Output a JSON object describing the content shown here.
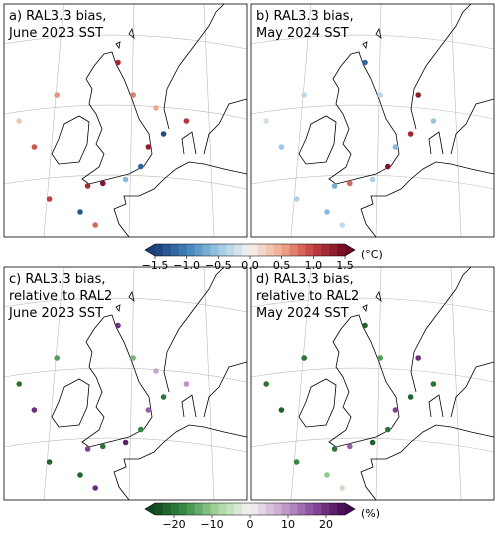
{
  "panels": [
    {
      "title": [
        "a) RAL3.3 bias,",
        "June 2023 SST"
      ],
      "colorbar": 0,
      "points": [
        {
          "lon": -9,
          "lat": 57,
          "value": 0.6
        },
        {
          "lon": -12,
          "lat": 53,
          "value": 0.9
        },
        {
          "lon": -10,
          "lat": 49,
          "value": 1.0
        },
        {
          "lon": -5,
          "lat": 50,
          "value": 1.2
        },
        {
          "lon": -3,
          "lat": 50.2,
          "value": 1.4
        },
        {
          "lon": 0,
          "lat": 50.5,
          "value": -0.6
        },
        {
          "lon": 2,
          "lat": 51.5,
          "value": -1.2
        },
        {
          "lon": 3,
          "lat": 53,
          "value": 1.3
        },
        {
          "lon": 5,
          "lat": 54,
          "value": -1.4
        },
        {
          "lon": 8,
          "lat": 55,
          "value": 1.1
        },
        {
          "lon": 1,
          "lat": 57,
          "value": 0.7
        },
        {
          "lon": -1,
          "lat": 59.5,
          "value": 1.2
        },
        {
          "lon": -6,
          "lat": 48,
          "value": -1.3
        },
        {
          "lon": -4,
          "lat": 47,
          "value": 0.8
        },
        {
          "lon": -14,
          "lat": 55,
          "value": 0.3
        },
        {
          "lon": 4,
          "lat": 56,
          "value": 0.5
        }
      ]
    },
    {
      "title": [
        "b) RAL3.3 bias,",
        "May 2024 SST"
      ],
      "colorbar": 0,
      "points": [
        {
          "lon": -9,
          "lat": 57,
          "value": -0.3
        },
        {
          "lon": -12,
          "lat": 53,
          "value": -0.5
        },
        {
          "lon": -10,
          "lat": 49,
          "value": -0.4
        },
        {
          "lon": -5,
          "lat": 50,
          "value": -0.7
        },
        {
          "lon": -3,
          "lat": 50.2,
          "value": 0.8
        },
        {
          "lon": 0,
          "lat": 50.5,
          "value": -0.4
        },
        {
          "lon": 2,
          "lat": 51.5,
          "value": 1.4
        },
        {
          "lon": 3,
          "lat": 53,
          "value": -0.6
        },
        {
          "lon": 5,
          "lat": 54,
          "value": 1.2
        },
        {
          "lon": 8,
          "lat": 55,
          "value": -0.5
        },
        {
          "lon": 1,
          "lat": 57,
          "value": -0.3
        },
        {
          "lon": -1,
          "lat": 59.5,
          "value": -1.2
        },
        {
          "lon": -6,
          "lat": 48,
          "value": -0.6
        },
        {
          "lon": -4,
          "lat": 47,
          "value": -0.3
        },
        {
          "lon": -14,
          "lat": 55,
          "value": -0.2
        },
        {
          "lon": 6,
          "lat": 57,
          "value": 1.3
        }
      ]
    },
    {
      "title": [
        "c) RAL3.3 bias,",
        "relative to RAL2",
        "June 2023 SST"
      ],
      "colorbar": 1,
      "points": [
        {
          "lon": -9,
          "lat": 57,
          "value": -15
        },
        {
          "lon": -12,
          "lat": 53,
          "value": 20
        },
        {
          "lon": -10,
          "lat": 49,
          "value": -22
        },
        {
          "lon": -5,
          "lat": 50,
          "value": 18
        },
        {
          "lon": -3,
          "lat": 50.2,
          "value": -20
        },
        {
          "lon": 0,
          "lat": 50.5,
          "value": 22
        },
        {
          "lon": 2,
          "lat": 51.5,
          "value": -18
        },
        {
          "lon": 3,
          "lat": 53,
          "value": 15
        },
        {
          "lon": 5,
          "lat": 54,
          "value": -20
        },
        {
          "lon": 8,
          "lat": 55,
          "value": 10
        },
        {
          "lon": 1,
          "lat": 57,
          "value": -12
        },
        {
          "lon": -1,
          "lat": 59.5,
          "value": 20
        },
        {
          "lon": -6,
          "lat": 48,
          "value": -22
        },
        {
          "lon": -4,
          "lat": 47,
          "value": 20
        },
        {
          "lon": -14,
          "lat": 55,
          "value": -20
        },
        {
          "lon": 4,
          "lat": 56,
          "value": 8
        }
      ]
    },
    {
      "title": [
        "d) RAL3.3 bias,",
        "relative to RAL2",
        "May 2024 SST"
      ],
      "colorbar": 1,
      "points": [
        {
          "lon": -9,
          "lat": 57,
          "value": -20
        },
        {
          "lon": -12,
          "lat": 53,
          "value": -22
        },
        {
          "lon": -10,
          "lat": 49,
          "value": -18
        },
        {
          "lon": -5,
          "lat": 50,
          "value": -20
        },
        {
          "lon": -3,
          "lat": 50.2,
          "value": 15
        },
        {
          "lon": 0,
          "lat": 50.5,
          "value": -22
        },
        {
          "lon": 2,
          "lat": 51.5,
          "value": -20
        },
        {
          "lon": 3,
          "lat": 53,
          "value": 18
        },
        {
          "lon": 5,
          "lat": 54,
          "value": -22
        },
        {
          "lon": 8,
          "lat": 55,
          "value": -20
        },
        {
          "lon": 1,
          "lat": 57,
          "value": -15
        },
        {
          "lon": -1,
          "lat": 59.5,
          "value": -22
        },
        {
          "lon": -6,
          "lat": 48,
          "value": -10
        },
        {
          "lon": -4,
          "lat": 47,
          "value": -5
        },
        {
          "lon": -14,
          "lat": 55,
          "value": -20
        },
        {
          "lon": 6,
          "lat": 57,
          "value": 20
        }
      ]
    }
  ],
  "colorbars": [
    {
      "lim": [
        -1.5,
        1.5
      ],
      "unit": "(°C)",
      "cmap": [
        "#1b3f7a",
        "#3f7fb8",
        "#9cc7e2",
        "#f5f3f1",
        "#f0a98a",
        "#c33f3e",
        "#6e0b22"
      ],
      "ticks": [
        {
          "value": -1.5,
          "label": "−1.5"
        },
        {
          "value": -1.0,
          "label": "−1.0"
        },
        {
          "value": -0.5,
          "label": "−0.5"
        },
        {
          "value": 0,
          "label": "0.0"
        },
        0.5,
        {
          "value": 1.0,
          "label": "1.0"
        },
        1.5
      ]
    },
    {
      "lim": [
        -25,
        25
      ],
      "unit": "(%)",
      "cmap": [
        "#0f4a1e",
        "#3d8f48",
        "#a9d8a1",
        "#f5f3f4",
        "#c6a5cf",
        "#8a4c9c",
        "#42074f"
      ],
      "ticks": [
        {
          "value": -20,
          "label": "−20"
        },
        {
          "value": -10,
          "label": "−10"
        },
        0,
        10,
        20
      ]
    }
  ]
}
